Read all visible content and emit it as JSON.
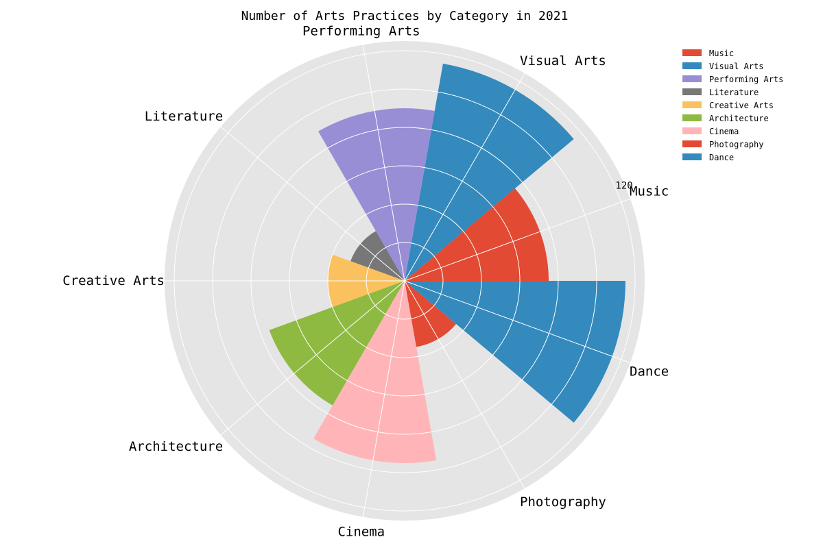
{
  "chart_data": {
    "type": "polar-bar",
    "title": "Number of Arts Practices by Category in 2021",
    "categories": [
      "Music",
      "Visual Arts",
      "Performing Arts",
      "Literature",
      "Creative Arts",
      "Architecture",
      "Cinema",
      "Photography",
      "Dance"
    ],
    "values": [
      75,
      115,
      90,
      30,
      40,
      75,
      95,
      35,
      115
    ],
    "colors": [
      "#E24A33",
      "#348ABD",
      "#988ED5",
      "#777777",
      "#FBC15E",
      "#8EBA42",
      "#FFB5B8",
      "#E24A33",
      "#348ABD"
    ],
    "radial_max": 125,
    "radial_ticks": [
      20,
      40,
      60,
      80,
      100,
      120
    ],
    "radial_tick_labels": [
      "",
      "",
      "",
      "",
      "",
      "120"
    ],
    "grid": true,
    "legend_position": "top-right"
  }
}
